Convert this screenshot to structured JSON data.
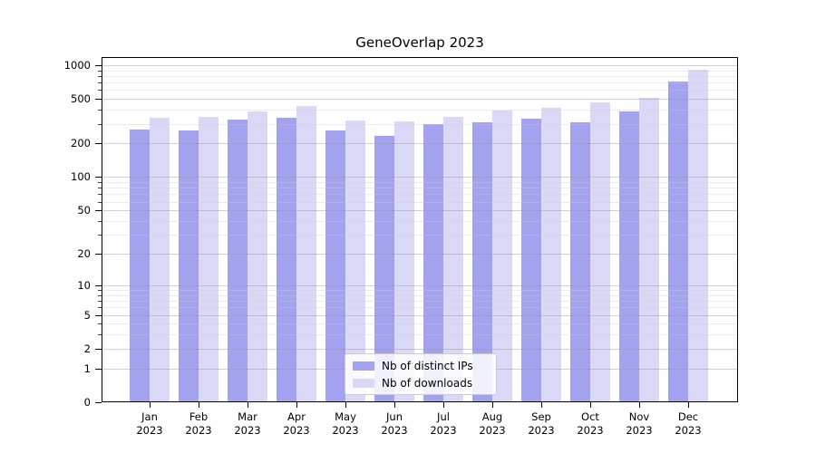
{
  "title": "GeneOverlap 2023",
  "colors": {
    "distinct_ips": "#a2a2ef",
    "downloads": "#d9d9f7",
    "axis": "#000000",
    "grid_major": "#c2c2c2",
    "grid_minor": "#e9e9e9",
    "background": "#ffffff"
  },
  "legend": {
    "items": [
      {
        "label": "Nb of distinct IPs",
        "series": "distinct_ips"
      },
      {
        "label": "Nb of downloads",
        "series": "downloads"
      }
    ]
  },
  "chart_data": {
    "type": "bar",
    "title": "GeneOverlap 2023",
    "categories": [
      "Jan 2023",
      "Feb 2023",
      "Mar 2023",
      "Apr 2023",
      "May 2023",
      "Jun 2023",
      "Jul 2023",
      "Aug 2023",
      "Sep 2023",
      "Oct 2023",
      "Nov 2023",
      "Dec 2023"
    ],
    "series": [
      {
        "name": "Nb of distinct IPs",
        "color": "#a2a2ef",
        "values": [
          267,
          262,
          328,
          340,
          262,
          235,
          299,
          310,
          334,
          310,
          388,
          718
        ]
      },
      {
        "name": "Nb of downloads",
        "color": "#d9d9f7",
        "values": [
          341,
          347,
          388,
          434,
          322,
          316,
          347,
          395,
          418,
          465,
          513,
          908
        ]
      }
    ],
    "xlabel": "",
    "ylabel": "",
    "y_scale": "log1p",
    "y_ticks": [
      0,
      1,
      2,
      5,
      10,
      20,
      50,
      100,
      200,
      500,
      1000
    ],
    "y_minor_ticks": [
      3,
      4,
      6,
      7,
      8,
      9,
      30,
      40,
      60,
      70,
      80,
      90,
      300,
      400,
      600,
      700,
      800,
      900
    ],
    "ylim": [
      0,
      1180
    ],
    "grid": "both",
    "legend_position": "lower center"
  }
}
